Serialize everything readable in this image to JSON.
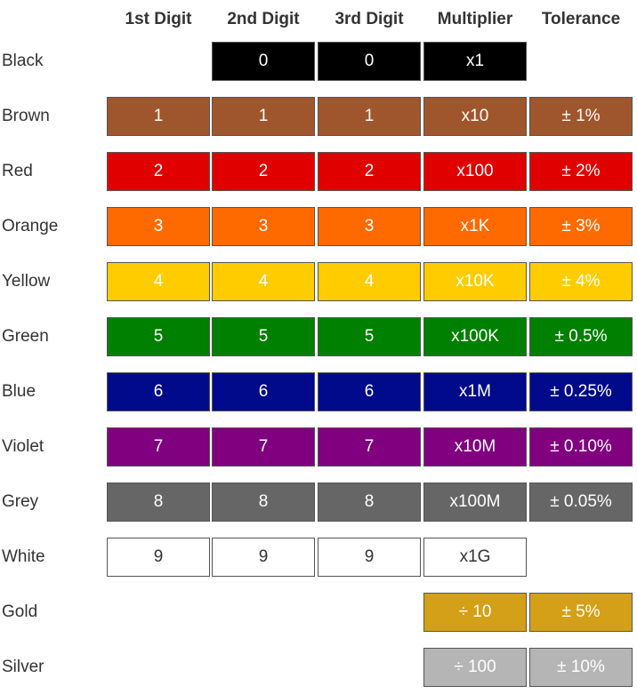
{
  "headers": [
    "1st Digit",
    "2nd Digit",
    "3rd Digit",
    "Multiplier",
    "Tolerance"
  ],
  "rows": [
    {
      "name": "Black",
      "bg": "#000000",
      "fg": "#ffffff",
      "cells": [
        "",
        "0",
        "0",
        "x1",
        ""
      ]
    },
    {
      "name": "Brown",
      "bg": "#a0562c",
      "fg": "#ffffff",
      "cells": [
        "1",
        "1",
        "1",
        "x10",
        "± 1%"
      ]
    },
    {
      "name": "Red",
      "bg": "#e00000",
      "fg": "#ffffff",
      "cells": [
        "2",
        "2",
        "2",
        "x100",
        "± 2%"
      ]
    },
    {
      "name": "Orange",
      "bg": "#ff6a00",
      "fg": "#ffffff",
      "cells": [
        "3",
        "3",
        "3",
        "x1K",
        "± 3%"
      ]
    },
    {
      "name": "Yellow",
      "bg": "#ffcc00",
      "fg": "#ffffff",
      "cells": [
        "4",
        "4",
        "4",
        "x10K",
        "± 4%"
      ]
    },
    {
      "name": "Green",
      "bg": "#008000",
      "fg": "#ffffff",
      "cells": [
        "5",
        "5",
        "5",
        "x100K",
        "± 0.5%"
      ]
    },
    {
      "name": "Blue",
      "bg": "#000a8a",
      "fg": "#ffffff",
      "cells": [
        "6",
        "6",
        "6",
        "x1M",
        "± 0.25%"
      ]
    },
    {
      "name": "Violet",
      "bg": "#800080",
      "fg": "#ffffff",
      "cells": [
        "7",
        "7",
        "7",
        "x10M",
        "± 0.10%"
      ]
    },
    {
      "name": "Grey",
      "bg": "#666666",
      "fg": "#ffffff",
      "cells": [
        "8",
        "8",
        "8",
        "x100M",
        "± 0.05%"
      ]
    },
    {
      "name": "White",
      "bg": "#ffffff",
      "fg": "#333333",
      "cells": [
        "9",
        "9",
        "9",
        "x1G",
        ""
      ]
    },
    {
      "name": "Gold",
      "bg": "#d4a017",
      "fg": "#ffffff",
      "cells": [
        "",
        "",
        "",
        "÷ 10",
        "± 5%"
      ]
    },
    {
      "name": "Silver",
      "bg": "#b5b5b5",
      "fg": "#ffffff",
      "cells": [
        "",
        "",
        "",
        "÷ 100",
        "± 10%"
      ]
    }
  ]
}
